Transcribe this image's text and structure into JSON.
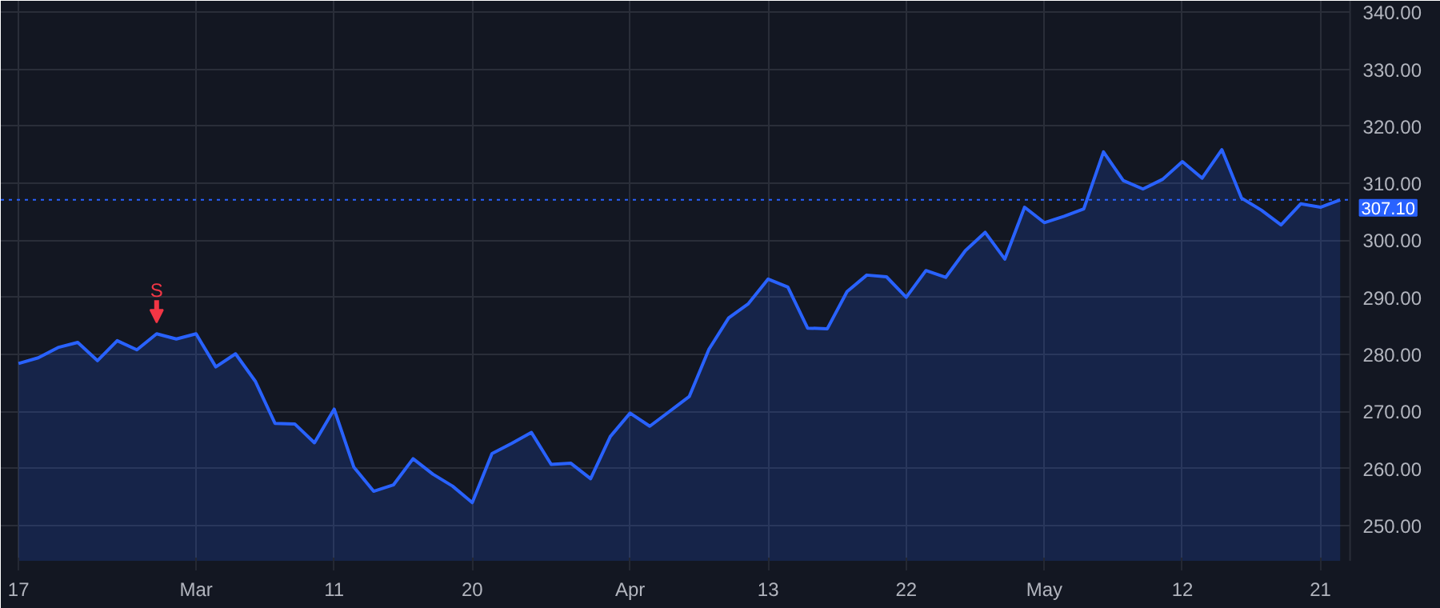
{
  "chart_data": {
    "type": "area",
    "categories": [
      "17",
      null,
      null,
      null,
      null,
      null,
      null,
      null,
      null,
      "Mar",
      null,
      null,
      null,
      null,
      null,
      null,
      "11",
      null,
      null,
      null,
      null,
      null,
      null,
      "20",
      null,
      null,
      null,
      null,
      null,
      null,
      null,
      "Apr",
      null,
      null,
      null,
      null,
      null,
      null,
      "13",
      null,
      null,
      null,
      null,
      null,
      null,
      "22",
      null,
      null,
      null,
      null,
      null,
      null,
      "May",
      null,
      null,
      null,
      null,
      null,
      null,
      "12",
      null,
      null,
      null,
      null,
      null,
      null,
      "21",
      null
    ],
    "series": [
      {
        "color": "#2962ff",
        "values": [
          278.4,
          279.4,
          281.2,
          282.1,
          278.9,
          282.4,
          280.8,
          283.6,
          282.7,
          283.6,
          277.8,
          280.1,
          275.3,
          267.9,
          267.8,
          264.5,
          270.4,
          260.2,
          256.0,
          257.1,
          261.7,
          259.0,
          256.9,
          254.0,
          262.6,
          264.4,
          266.3,
          260.7,
          260.9,
          258.2,
          265.6,
          269.7,
          267.4,
          270.0,
          272.6,
          280.9,
          286.4,
          288.9,
          293.2,
          291.8,
          284.6,
          284.5,
          291.0,
          293.9,
          293.6,
          290.0,
          294.7,
          293.5,
          298.2,
          301.4,
          296.7,
          305.8,
          303.1,
          304.2,
          305.5,
          315.5,
          310.5,
          309.0,
          310.7,
          313.8,
          310.9,
          315.9,
          307.4,
          305.3,
          302.7,
          306.4,
          305.8,
          307.1
        ]
      }
    ],
    "ylim": [
      243.8,
      342
    ],
    "yticks": [
      {
        "value": 250,
        "label": "250.00"
      },
      {
        "value": 260,
        "label": "260.00"
      },
      {
        "value": 270,
        "label": "270.00"
      },
      {
        "value": 280,
        "label": "280.00"
      },
      {
        "value": 290,
        "label": "290.00"
      },
      {
        "value": 300,
        "label": "300.00"
      },
      {
        "value": 310,
        "label": "310.00"
      },
      {
        "value": 320,
        "label": "320.00"
      },
      {
        "value": 330,
        "label": "330.00"
      },
      {
        "value": 340,
        "label": "340.00"
      }
    ],
    "ref_lines": [
      {
        "axis": "y",
        "value": 307.1,
        "label": "307.10",
        "color": "#2962ff",
        "line_style": "dotted"
      }
    ],
    "annotations": [
      {
        "text": "S",
        "y": 283.6
      }
    ],
    "grid": true,
    "line_style": "solid",
    "marker": "none"
  }
}
